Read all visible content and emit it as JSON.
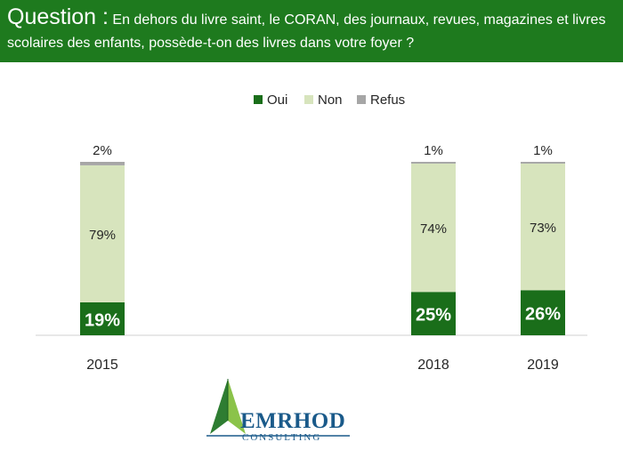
{
  "header": {
    "question_label": "Question :",
    "question_text": "En dehors du livre saint, le CORAN, des journaux, revues, magazines et livres scolaires des enfants, possède-t-on des livres dans votre foyer ?"
  },
  "logo": {
    "name": "EMRHOD",
    "sub": "CONSULTING"
  },
  "colors": {
    "oui": "#1a6e1a",
    "non": "#d7e4bd",
    "refus": "#a6a6a6",
    "header": "#1e7a1e"
  },
  "chart_data": {
    "type": "bar",
    "stacked": true,
    "categories": [
      "2015",
      "2018",
      "2019"
    ],
    "series": [
      {
        "name": "Oui",
        "values": [
          19,
          25,
          26
        ],
        "labels": [
          "19%",
          "25%",
          "26%"
        ]
      },
      {
        "name": "Non",
        "values": [
          79,
          74,
          73
        ],
        "labels": [
          "79%",
          "74%",
          "73%"
        ]
      },
      {
        "name": "Refus",
        "values": [
          2,
          1,
          1
        ],
        "labels": [
          "2%",
          "1%",
          "1%"
        ]
      }
    ],
    "ylim": [
      0,
      100
    ],
    "legend": "top-center",
    "grid": false
  }
}
